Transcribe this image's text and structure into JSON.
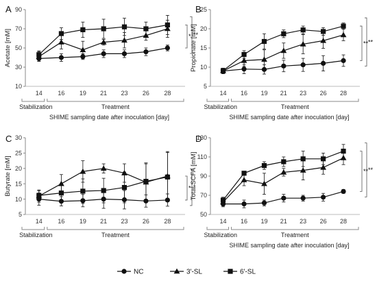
{
  "legend": {
    "items": [
      {
        "label": "NC",
        "marker": "circle"
      },
      {
        "label": "3'-SL",
        "marker": "triangle"
      },
      {
        "label": "6'-SL",
        "marker": "square"
      }
    ]
  },
  "colors": {
    "series": "#111111",
    "bracket": "#555555",
    "axis": "#888888"
  },
  "chart_data": [
    {
      "panel": "A",
      "type": "line",
      "ylabel": "Acetate [mM]",
      "xlabel": "SHIME sampling date after inoculation [day]",
      "phases": [
        "Stabilization",
        "Treatment"
      ],
      "x": [
        "14",
        "16",
        "19",
        "21",
        "23",
        "26",
        "28"
      ],
      "yticks": [
        10,
        30,
        50,
        70,
        90
      ],
      "ylim": [
        10,
        90
      ],
      "series": [
        {
          "name": "NC",
          "values": [
            39,
            40,
            41,
            44,
            44,
            46,
            50
          ],
          "errors": [
            3,
            4,
            3,
            4,
            4,
            4,
            3
          ]
        },
        {
          "name": "3'-SL",
          "values": [
            41,
            56,
            48,
            56,
            58,
            63,
            70
          ],
          "errors": [
            5,
            7,
            9,
            3,
            8,
            5,
            9
          ]
        },
        {
          "name": "6'-SL",
          "values": [
            43,
            65,
            69,
            70,
            72,
            70,
            74
          ],
          "errors": [
            4,
            6,
            8,
            10,
            9,
            7,
            10
          ]
        }
      ],
      "significance": [
        "*",
        "**"
      ]
    },
    {
      "panel": "B",
      "type": "line",
      "ylabel": "Propionate [mM]",
      "xlabel": "SHIME sampling date after inoculation [day]",
      "phases": [
        "Stabilization",
        "Treatment"
      ],
      "x": [
        "14",
        "16",
        "19",
        "21",
        "23",
        "26",
        "28"
      ],
      "yticks": [
        5,
        10,
        15,
        20,
        25
      ],
      "ylim": [
        5,
        25
      ],
      "series": [
        {
          "name": "NC",
          "values": [
            9,
            9.5,
            9.4,
            10.3,
            10.6,
            11,
            11.7
          ],
          "errors": [
            0.7,
            1.2,
            1.2,
            1.5,
            1.7,
            2,
            1.5
          ]
        },
        {
          "name": "3'-SL",
          "values": [
            9,
            11.7,
            12,
            14.3,
            16,
            16.9,
            18.4
          ],
          "errors": [
            0.7,
            1.5,
            2.5,
            2,
            2.5,
            2,
            1.5
          ]
        },
        {
          "name": "6'-SL",
          "values": [
            9.1,
            13.3,
            16.7,
            18.7,
            19.7,
            19.3,
            20.7
          ],
          "errors": [
            0.6,
            1,
            2,
            1,
            1,
            1,
            0.8
          ]
        }
      ],
      "significance": [
        "**",
        "**"
      ]
    },
    {
      "panel": "C",
      "type": "line",
      "ylabel": "Butyrate [mM]",
      "xlabel": "",
      "phases": [
        "Stabilization",
        "Treatment"
      ],
      "x": [
        "14",
        "16",
        "19",
        "21",
        "23",
        "26",
        "28"
      ],
      "yticks": [
        5,
        10,
        15,
        20,
        25,
        30
      ],
      "ylim": [
        5,
        30
      ],
      "series": [
        {
          "name": "NC",
          "values": [
            10,
            9.3,
            9.5,
            10,
            9.8,
            9.4,
            9.7
          ],
          "errors": [
            2,
            1.5,
            2,
            3,
            3,
            2,
            2
          ]
        },
        {
          "name": "3'-SL",
          "values": [
            11,
            15,
            19,
            20,
            18.5,
            15.5,
            17.5
          ],
          "errors": [
            2,
            3,
            3.5,
            1.5,
            3,
            6,
            8
          ]
        },
        {
          "name": "6'-SL",
          "values": [
            11.2,
            12,
            12.6,
            12.8,
            13.8,
            15.8,
            17.2
          ],
          "errors": [
            1.5,
            3,
            4,
            4,
            5,
            6,
            8
          ]
        }
      ],
      "significance": [
        "*",
        "*"
      ]
    },
    {
      "panel": "D",
      "type": "line",
      "ylabel": "Total SCFA [mM]",
      "xlabel": "SHIME sampling date after inoculation [day]",
      "phases": [
        "Stabilization",
        "Treatment"
      ],
      "x": [
        "14",
        "16",
        "19",
        "21",
        "23",
        "26",
        "28"
      ],
      "yticks": [
        50,
        70,
        90,
        110,
        130
      ],
      "ylim": [
        50,
        130
      ],
      "series": [
        {
          "name": "NC",
          "values": [
            61,
            61,
            62,
            67,
            67,
            68,
            74
          ],
          "errors": [
            3,
            4,
            3,
            4,
            3,
            4,
            2
          ]
        },
        {
          "name": "3'-SL",
          "values": [
            63,
            86,
            82,
            94,
            96,
            99,
            109
          ],
          "errors": [
            4,
            6,
            11,
            4,
            10,
            7,
            7
          ]
        },
        {
          "name": "6'-SL",
          "values": [
            65,
            93,
            101,
            105,
            108,
            108,
            116
          ],
          "errors": [
            3,
            2,
            4,
            5,
            8,
            6,
            7
          ]
        }
      ],
      "significance": [
        "**",
        "**"
      ]
    }
  ]
}
